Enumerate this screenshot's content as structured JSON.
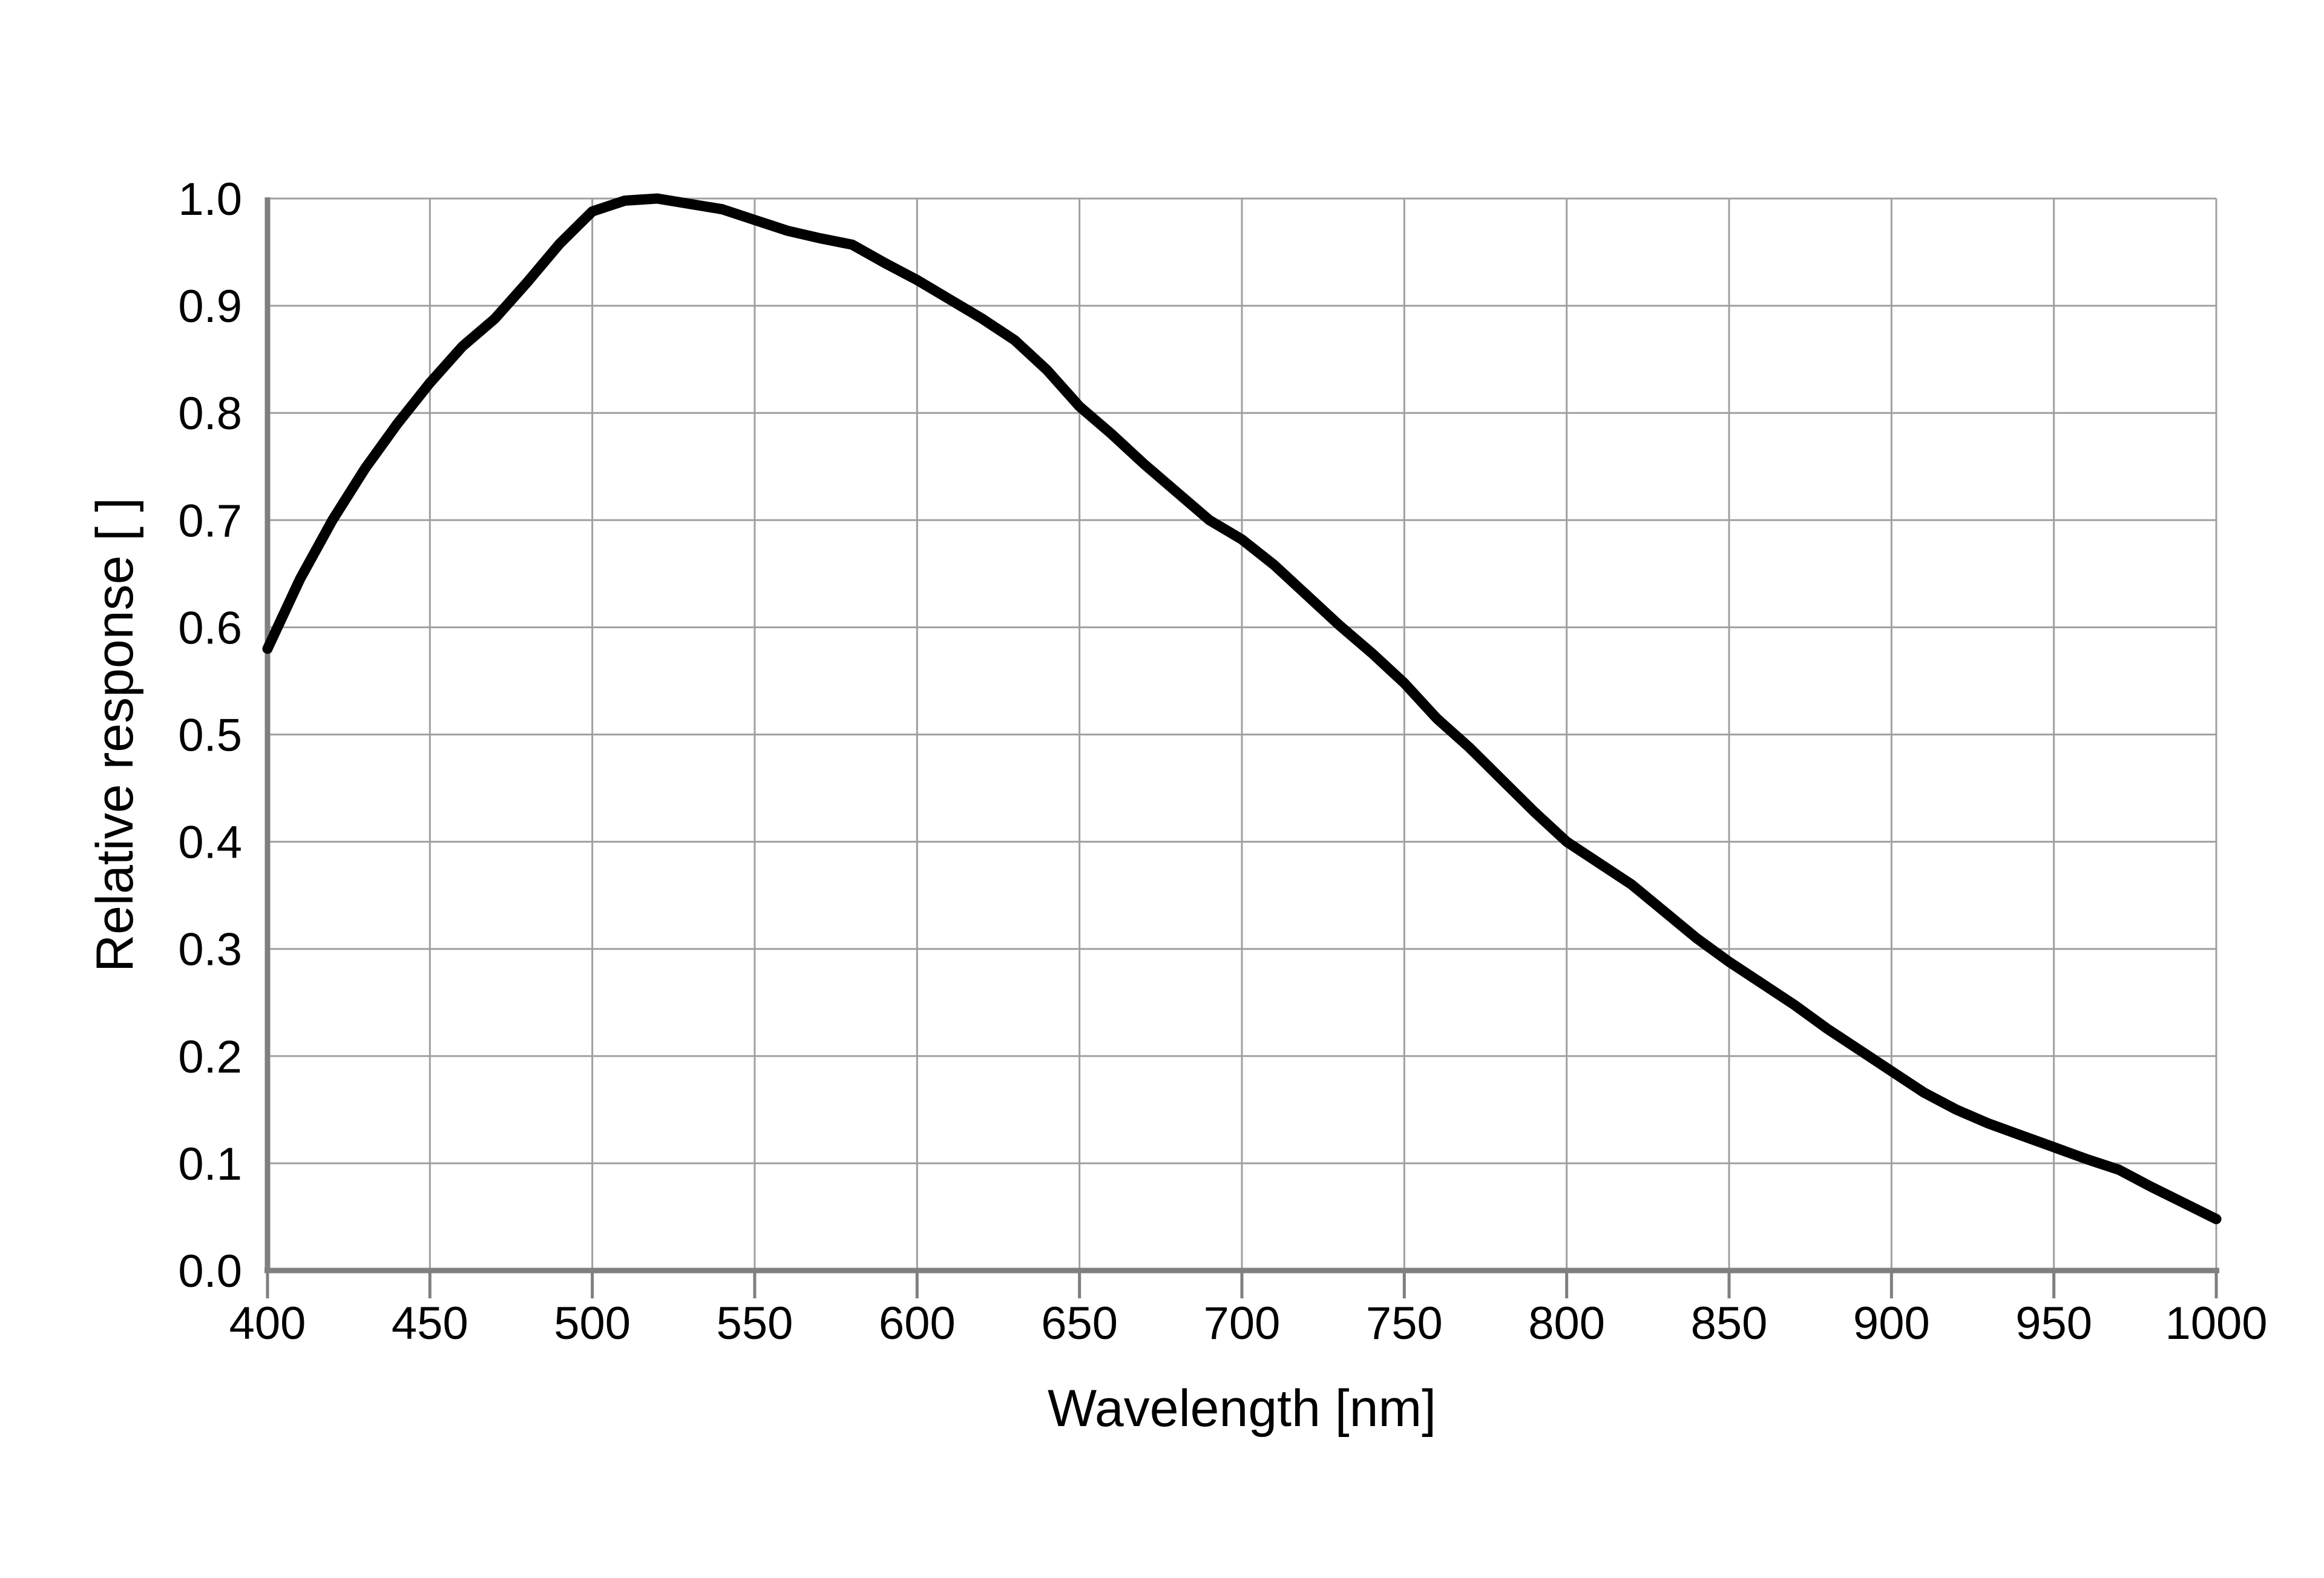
{
  "page": {
    "background": "#ffffff"
  },
  "chart_data": {
    "type": "line",
    "title": "",
    "xlabel": "Wavelength [nm]",
    "ylabel": "Relative response [ ]",
    "xlim": [
      400,
      1000
    ],
    "ylim": [
      0.0,
      1.0
    ],
    "grid": "on",
    "legend": "none",
    "x_ticks": [
      400,
      450,
      500,
      550,
      600,
      650,
      700,
      750,
      800,
      850,
      900,
      950,
      1000
    ],
    "x_tick_labels": [
      "400",
      "450",
      "500",
      "550",
      "600",
      "650",
      "700",
      "750",
      "800",
      "850",
      "900",
      "950",
      "1000"
    ],
    "y_ticks": [
      0.0,
      0.1,
      0.2,
      0.3,
      0.4,
      0.5,
      0.6,
      0.7,
      0.8,
      0.9,
      1.0
    ],
    "y_tick_labels": [
      "0.0",
      "0.1",
      "0.2",
      "0.3",
      "0.4",
      "0.5",
      "0.6",
      "0.7",
      "0.8",
      "0.9",
      "1.0"
    ],
    "colors": {
      "grid": "#a0a0a0",
      "axis": "#7f7f7f",
      "curve": "#000000",
      "text": "#000000"
    },
    "series": [
      {
        "name": "relative-response",
        "color": "#000000",
        "x": [
          400,
          410,
          420,
          430,
          440,
          450,
          460,
          470,
          480,
          490,
          500,
          510,
          520,
          530,
          540,
          550,
          560,
          570,
          580,
          590,
          600,
          610,
          620,
          630,
          640,
          650,
          660,
          670,
          680,
          690,
          700,
          710,
          720,
          730,
          740,
          750,
          760,
          770,
          780,
          790,
          800,
          810,
          820,
          830,
          840,
          850,
          860,
          870,
          880,
          890,
          900,
          910,
          920,
          930,
          940,
          950,
          960,
          970,
          980,
          990,
          1000
        ],
        "values": [
          0.58,
          0.645,
          0.7,
          0.748,
          0.79,
          0.828,
          0.862,
          0.888,
          0.922,
          0.958,
          0.988,
          0.998,
          1.0,
          0.995,
          0.99,
          0.98,
          0.97,
          0.963,
          0.957,
          0.94,
          0.924,
          0.906,
          0.888,
          0.868,
          0.84,
          0.806,
          0.78,
          0.752,
          0.726,
          0.7,
          0.682,
          0.658,
          0.63,
          0.602,
          0.576,
          0.548,
          0.515,
          0.488,
          0.458,
          0.428,
          0.4,
          0.38,
          0.36,
          0.335,
          0.31,
          0.288,
          0.268,
          0.248,
          0.226,
          0.206,
          0.186,
          0.166,
          0.15,
          0.137,
          0.126,
          0.115,
          0.104,
          0.094,
          0.078,
          0.063,
          0.048
        ]
      }
    ]
  }
}
